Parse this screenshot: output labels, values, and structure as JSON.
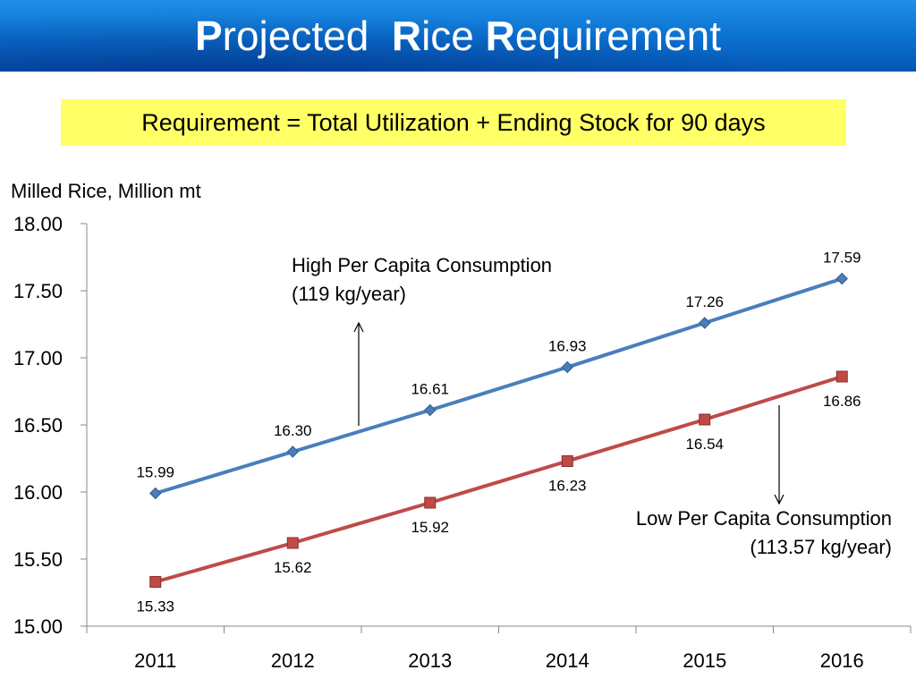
{
  "title_parts": [
    {
      "text": "P",
      "bold": true
    },
    {
      "text": "rojected  ",
      "bold": false
    },
    {
      "text": "R",
      "bold": true
    },
    {
      "text": "ice ",
      "bold": false
    },
    {
      "text": "R",
      "bold": true
    },
    {
      "text": "equirement",
      "bold": false
    }
  ],
  "formula": "Requirement  = Total Utilization + Ending Stock for 90 days",
  "chart_data": {
    "type": "line",
    "ylabel": "Milled Rice, Million mt",
    "ylim": [
      15.0,
      18.0
    ],
    "yticks": [
      15.0,
      15.5,
      16.0,
      16.5,
      17.0,
      17.5,
      18.0
    ],
    "ytick_labels": [
      "15.00",
      "15.50",
      "16.00",
      "16.50",
      "17.00",
      "17.50",
      "18.00"
    ],
    "categories": [
      "2011",
      "2012",
      "2013",
      "2014",
      "2015",
      "2016"
    ],
    "grid": false,
    "series": [
      {
        "values": [
          15.99,
          16.3,
          16.61,
          16.93,
          17.26,
          17.59
        ],
        "labels": [
          "15.99",
          "16.30",
          "16.61",
          "16.93",
          "17.26",
          "17.59"
        ],
        "color": "#4a7ebb",
        "marker": "diamond",
        "label_position": "above"
      },
      {
        "values": [
          15.33,
          15.62,
          15.92,
          16.23,
          16.54,
          16.86
        ],
        "labels": [
          "15.33",
          "15.62",
          "15.92",
          "16.23",
          "16.54",
          "16.86"
        ],
        "color": "#be4b48",
        "marker": "square",
        "label_position": "below"
      }
    ],
    "annotations": [
      {
        "lines": [
          "High Per Capita Consumption",
          "(119 kg/year)"
        ],
        "arrow": "up"
      },
      {
        "lines": [
          "Low Per Capita Consumption",
          "(113.57 kg/year)"
        ],
        "arrow": "down"
      }
    ]
  }
}
